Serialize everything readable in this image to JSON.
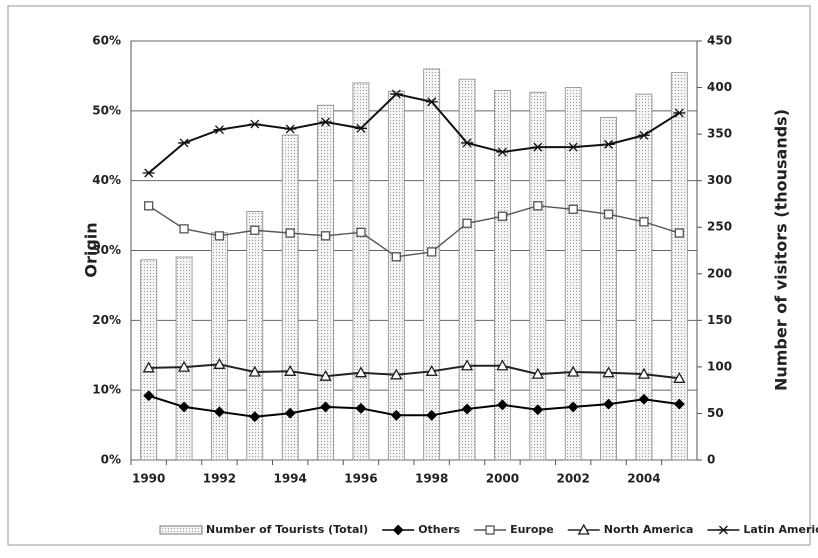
{
  "chart_data": {
    "type": "bar",
    "categories": [
      "1990",
      null,
      "1992",
      null,
      "1994",
      null,
      "1996",
      null,
      "1998",
      null,
      "2000",
      null,
      "2002",
      null,
      "2004",
      null
    ],
    "y_label": "Origin",
    "y2_label": "Number of visitors (thousands)",
    "ylim": [
      0,
      60
    ],
    "yticks": [
      {
        "value": 0,
        "label": "0%"
      },
      {
        "value": 10,
        "label": "10%"
      },
      {
        "value": 20,
        "label": "20%"
      },
      {
        "value": 30,
        "label": "30%"
      },
      {
        "value": 40,
        "label": "40%"
      },
      {
        "value": 50,
        "label": "50%"
      },
      {
        "value": 60,
        "label": "60%"
      }
    ],
    "y2lim": [
      0,
      450
    ],
    "y2ticks": [
      0,
      50,
      100,
      150,
      200,
      250,
      300,
      350,
      400,
      450
    ],
    "grid": true,
    "legend": "bottom",
    "series": [
      {
        "name": "Number of Tourists (Total)",
        "type": "bar",
        "axis": "y2",
        "color": "#d8d8d8",
        "values": [
          215,
          218,
          244,
          267,
          349,
          381,
          405,
          396,
          420,
          409,
          397,
          395,
          400,
          368,
          393,
          416
        ]
      },
      {
        "name": "Others",
        "type": "line",
        "marker": "diamond",
        "color": "#000000",
        "values": [
          9.2,
          7.6,
          6.9,
          6.2,
          6.7,
          7.6,
          7.4,
          6.4,
          6.4,
          7.3,
          7.9,
          7.2,
          7.6,
          8.0,
          8.7,
          8.0
        ]
      },
      {
        "name": "Europe",
        "type": "line",
        "marker": "square",
        "color": "#555555",
        "values": [
          36.4,
          33.1,
          32.1,
          32.9,
          32.5,
          32.1,
          32.6,
          29.1,
          29.8,
          33.9,
          34.9,
          36.4,
          35.9,
          35.2,
          34.1,
          32.5
        ]
      },
      {
        "name": "North America",
        "type": "line",
        "marker": "triangle",
        "color": "#222222",
        "values": [
          13.2,
          13.3,
          13.7,
          12.6,
          12.7,
          12.0,
          12.5,
          12.2,
          12.7,
          13.5,
          13.5,
          12.3,
          12.6,
          12.5,
          12.3,
          11.7
        ]
      },
      {
        "name": "Latin America",
        "type": "line",
        "marker": "star",
        "color": "#111111",
        "values": [
          41.1,
          45.4,
          47.3,
          48.1,
          47.4,
          48.4,
          47.5,
          52.4,
          51.3,
          45.4,
          44.1,
          44.8,
          44.8,
          45.2,
          46.5,
          49.7
        ]
      }
    ]
  }
}
